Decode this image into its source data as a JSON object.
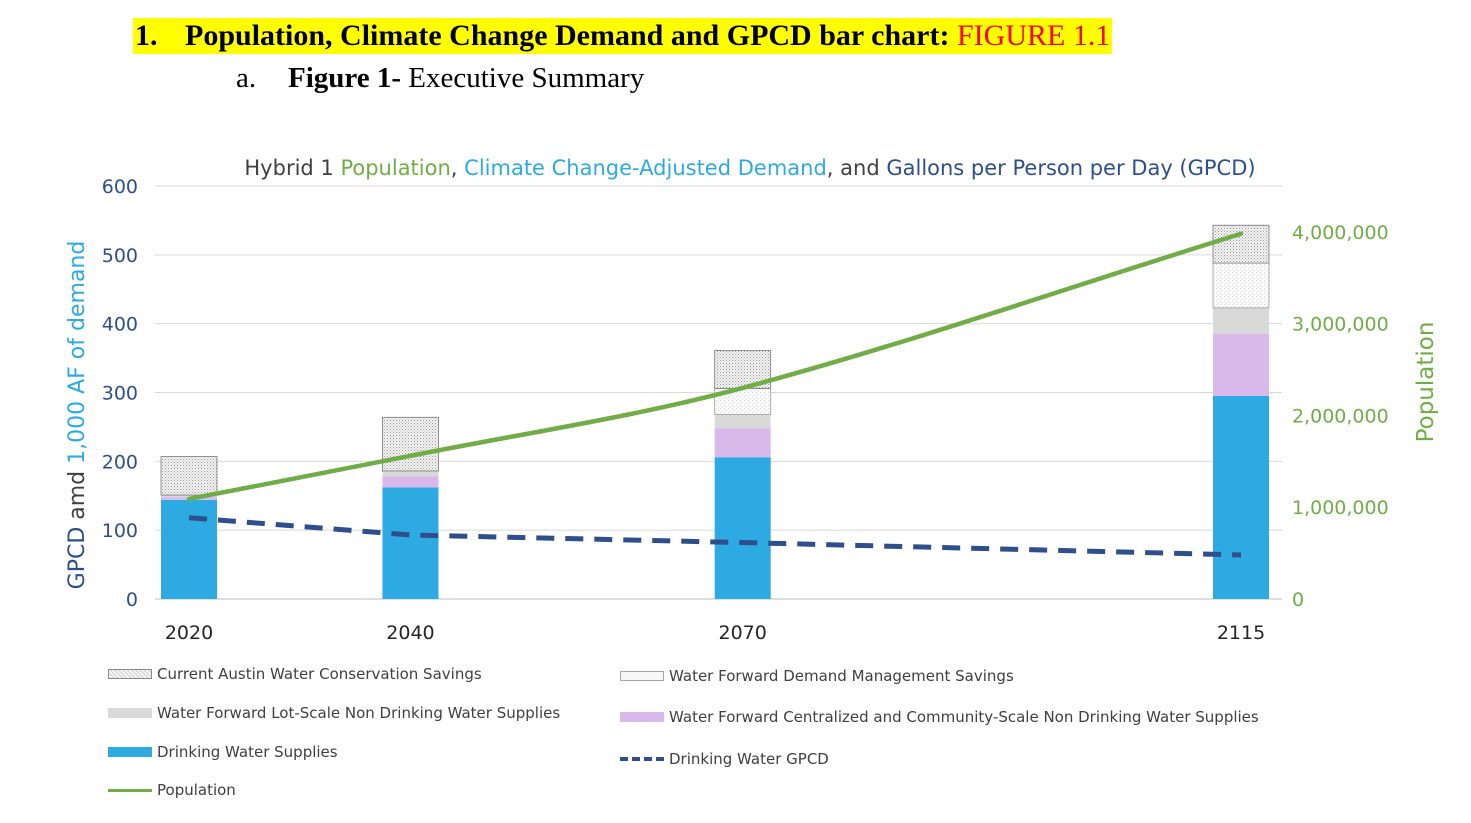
{
  "document": {
    "heading_number": "1.",
    "heading_text": "Population, Climate Change Demand and GPCD bar chart: ",
    "heading_figure": "FIGURE 1.1",
    "sub_letter": "a.",
    "sub_bold": "Figure 1-",
    "sub_text": " Executive Summary"
  },
  "colors": {
    "drinking": "#2eaae3",
    "central": "#d9b8ec",
    "lot": "#d9d9d9",
    "demand_mgmt": "#f6f6f6",
    "current": "#e8e8e8",
    "gpcd": "#2e4f8c",
    "population": "#70ad47",
    "title_dark": "#404040",
    "title_blue": "#2eaae3",
    "axis_text": "#2e4f8c"
  },
  "chart_data": {
    "type": "bar",
    "title_parts": [
      {
        "text": "Hybrid 1 ",
        "color": "#404040"
      },
      {
        "text": "Population",
        "color": "#70ad47"
      },
      {
        "text": ", ",
        "color": "#404040"
      },
      {
        "text": "Climate Change-Adjusted Demand",
        "color": "#2eaae3"
      },
      {
        "text": ", and ",
        "color": "#404040"
      },
      {
        "text": "Gallons per Person per Day (GPCD)",
        "color": "#2e4f8c"
      }
    ],
    "ylabel_parts": [
      {
        "text": "GPCD ",
        "color": "#2e4f8c"
      },
      {
        "text": "amd ",
        "color": "#404040"
      },
      {
        "text": "1,000 AF of demand",
        "color": "#2eaae3"
      }
    ],
    "y2label": "Population",
    "categories": [
      "2020",
      "2040",
      "2070",
      "2115"
    ],
    "category_years": [
      2020,
      2040,
      2070,
      2115
    ],
    "ylim": [
      0,
      600
    ],
    "yticks": [
      0,
      100,
      200,
      300,
      400,
      500,
      600
    ],
    "ytick_labels": [
      "0",
      "100",
      "200",
      "300",
      "400",
      "500",
      "600"
    ],
    "y2lim": [
      0,
      4500000
    ],
    "y2ticks": [
      0,
      1000000,
      2000000,
      3000000,
      4000000
    ],
    "y2tick_labels": [
      "0",
      "1,000,000",
      "2,000,000",
      "3,000,000",
      "4,000,000"
    ],
    "stacked_series": [
      {
        "name": "Drinking Water Supplies",
        "values": [
          144,
          162,
          206,
          295
        ]
      },
      {
        "name": "Water Forward Centralized and Community-Scale Non Drinking Water Supplies",
        "values": [
          4,
          16,
          42,
          90
        ]
      },
      {
        "name": "Water Forward Lot-Scale Non Drinking Water Supplies",
        "values": [
          3,
          8,
          20,
          38
        ]
      },
      {
        "name": "Water Forward Demand Management Savings",
        "values": [
          0,
          0,
          38,
          65
        ]
      },
      {
        "name": "Current Austin Water Conservation Savings",
        "values": [
          56,
          78,
          55,
          55
        ]
      }
    ],
    "line_series": [
      {
        "name": "Drinking Water GPCD",
        "axis": "left",
        "x": [
          2020,
          2040,
          2070,
          2115
        ],
        "values": [
          118,
          93,
          82,
          64
        ]
      },
      {
        "name": "Population",
        "axis": "right",
        "x": [
          2020,
          2040,
          2070,
          2115
        ],
        "values": [
          1090000,
          1560000,
          2300000,
          3980000
        ]
      }
    ],
    "legend": [
      "Current Austin Water Conservation Savings",
      "Water Forward Demand Management Savings",
      "Water Forward Lot-Scale Non Drinking Water Supplies",
      "Water Forward Centralized and Community-Scale Non Drinking Water Supplies",
      "Drinking Water Supplies",
      "Drinking Water GPCD",
      "Population"
    ]
  }
}
